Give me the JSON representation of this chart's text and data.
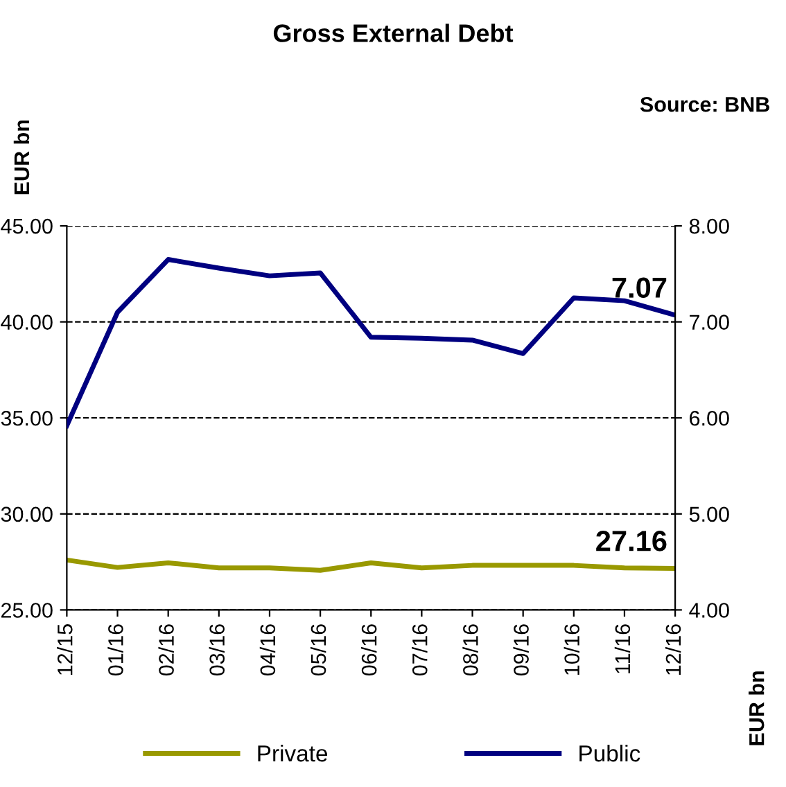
{
  "chart_data": {
    "type": "line",
    "title": "Gross External Debt",
    "ylabel": "EUR bn",
    "y2label": "EUR bn",
    "annotations": [
      "Source: BNB"
    ],
    "categories": [
      "12/15",
      "01/16",
      "02/16",
      "03/16",
      "04/16",
      "05/16",
      "06/16",
      "07/16",
      "08/16",
      "09/16",
      "10/16",
      "11/16",
      "12/16"
    ],
    "series": [
      {
        "name": "Private",
        "color": "#999900",
        "values": [
          27.6,
          27.21,
          27.45,
          27.19,
          27.19,
          27.06,
          27.45,
          27.19,
          27.32,
          27.32,
          27.32,
          27.19,
          27.16
        ],
        "value_labels": [
          null,
          null,
          null,
          null,
          null,
          null,
          null,
          null,
          null,
          null,
          null,
          null,
          "27.16"
        ]
      },
      {
        "name": "Public",
        "color": "#000080",
        "axis": "y2",
        "values": [
          5.92,
          7.1,
          7.65,
          7.56,
          7.48,
          7.51,
          6.84,
          6.83,
          6.81,
          6.67,
          7.25,
          7.22,
          7.07
        ],
        "value_labels": [
          null,
          null,
          null,
          null,
          null,
          null,
          null,
          null,
          null,
          null,
          null,
          null,
          "7.07"
        ]
      }
    ],
    "ylim": [
      25,
      45
    ],
    "yticks": [
      {
        "value": 25,
        "label": "25.00"
      },
      {
        "value": 30,
        "label": "30.00"
      },
      {
        "value": 35,
        "label": "35.00"
      },
      {
        "value": 40,
        "label": "40.00"
      },
      {
        "value": 45,
        "label": "45.00"
      }
    ],
    "y2lim": [
      4,
      8
    ],
    "y2ticks": [
      {
        "value": 4,
        "label": "4.00"
      },
      {
        "value": 5,
        "label": "5.00"
      },
      {
        "value": 6,
        "label": "6.00"
      },
      {
        "value": 7,
        "label": "7.00"
      },
      {
        "value": 8,
        "label": "8.00"
      }
    ],
    "grid": "y",
    "legend": "bottom",
    "marker": "none",
    "line_style": "solid"
  }
}
